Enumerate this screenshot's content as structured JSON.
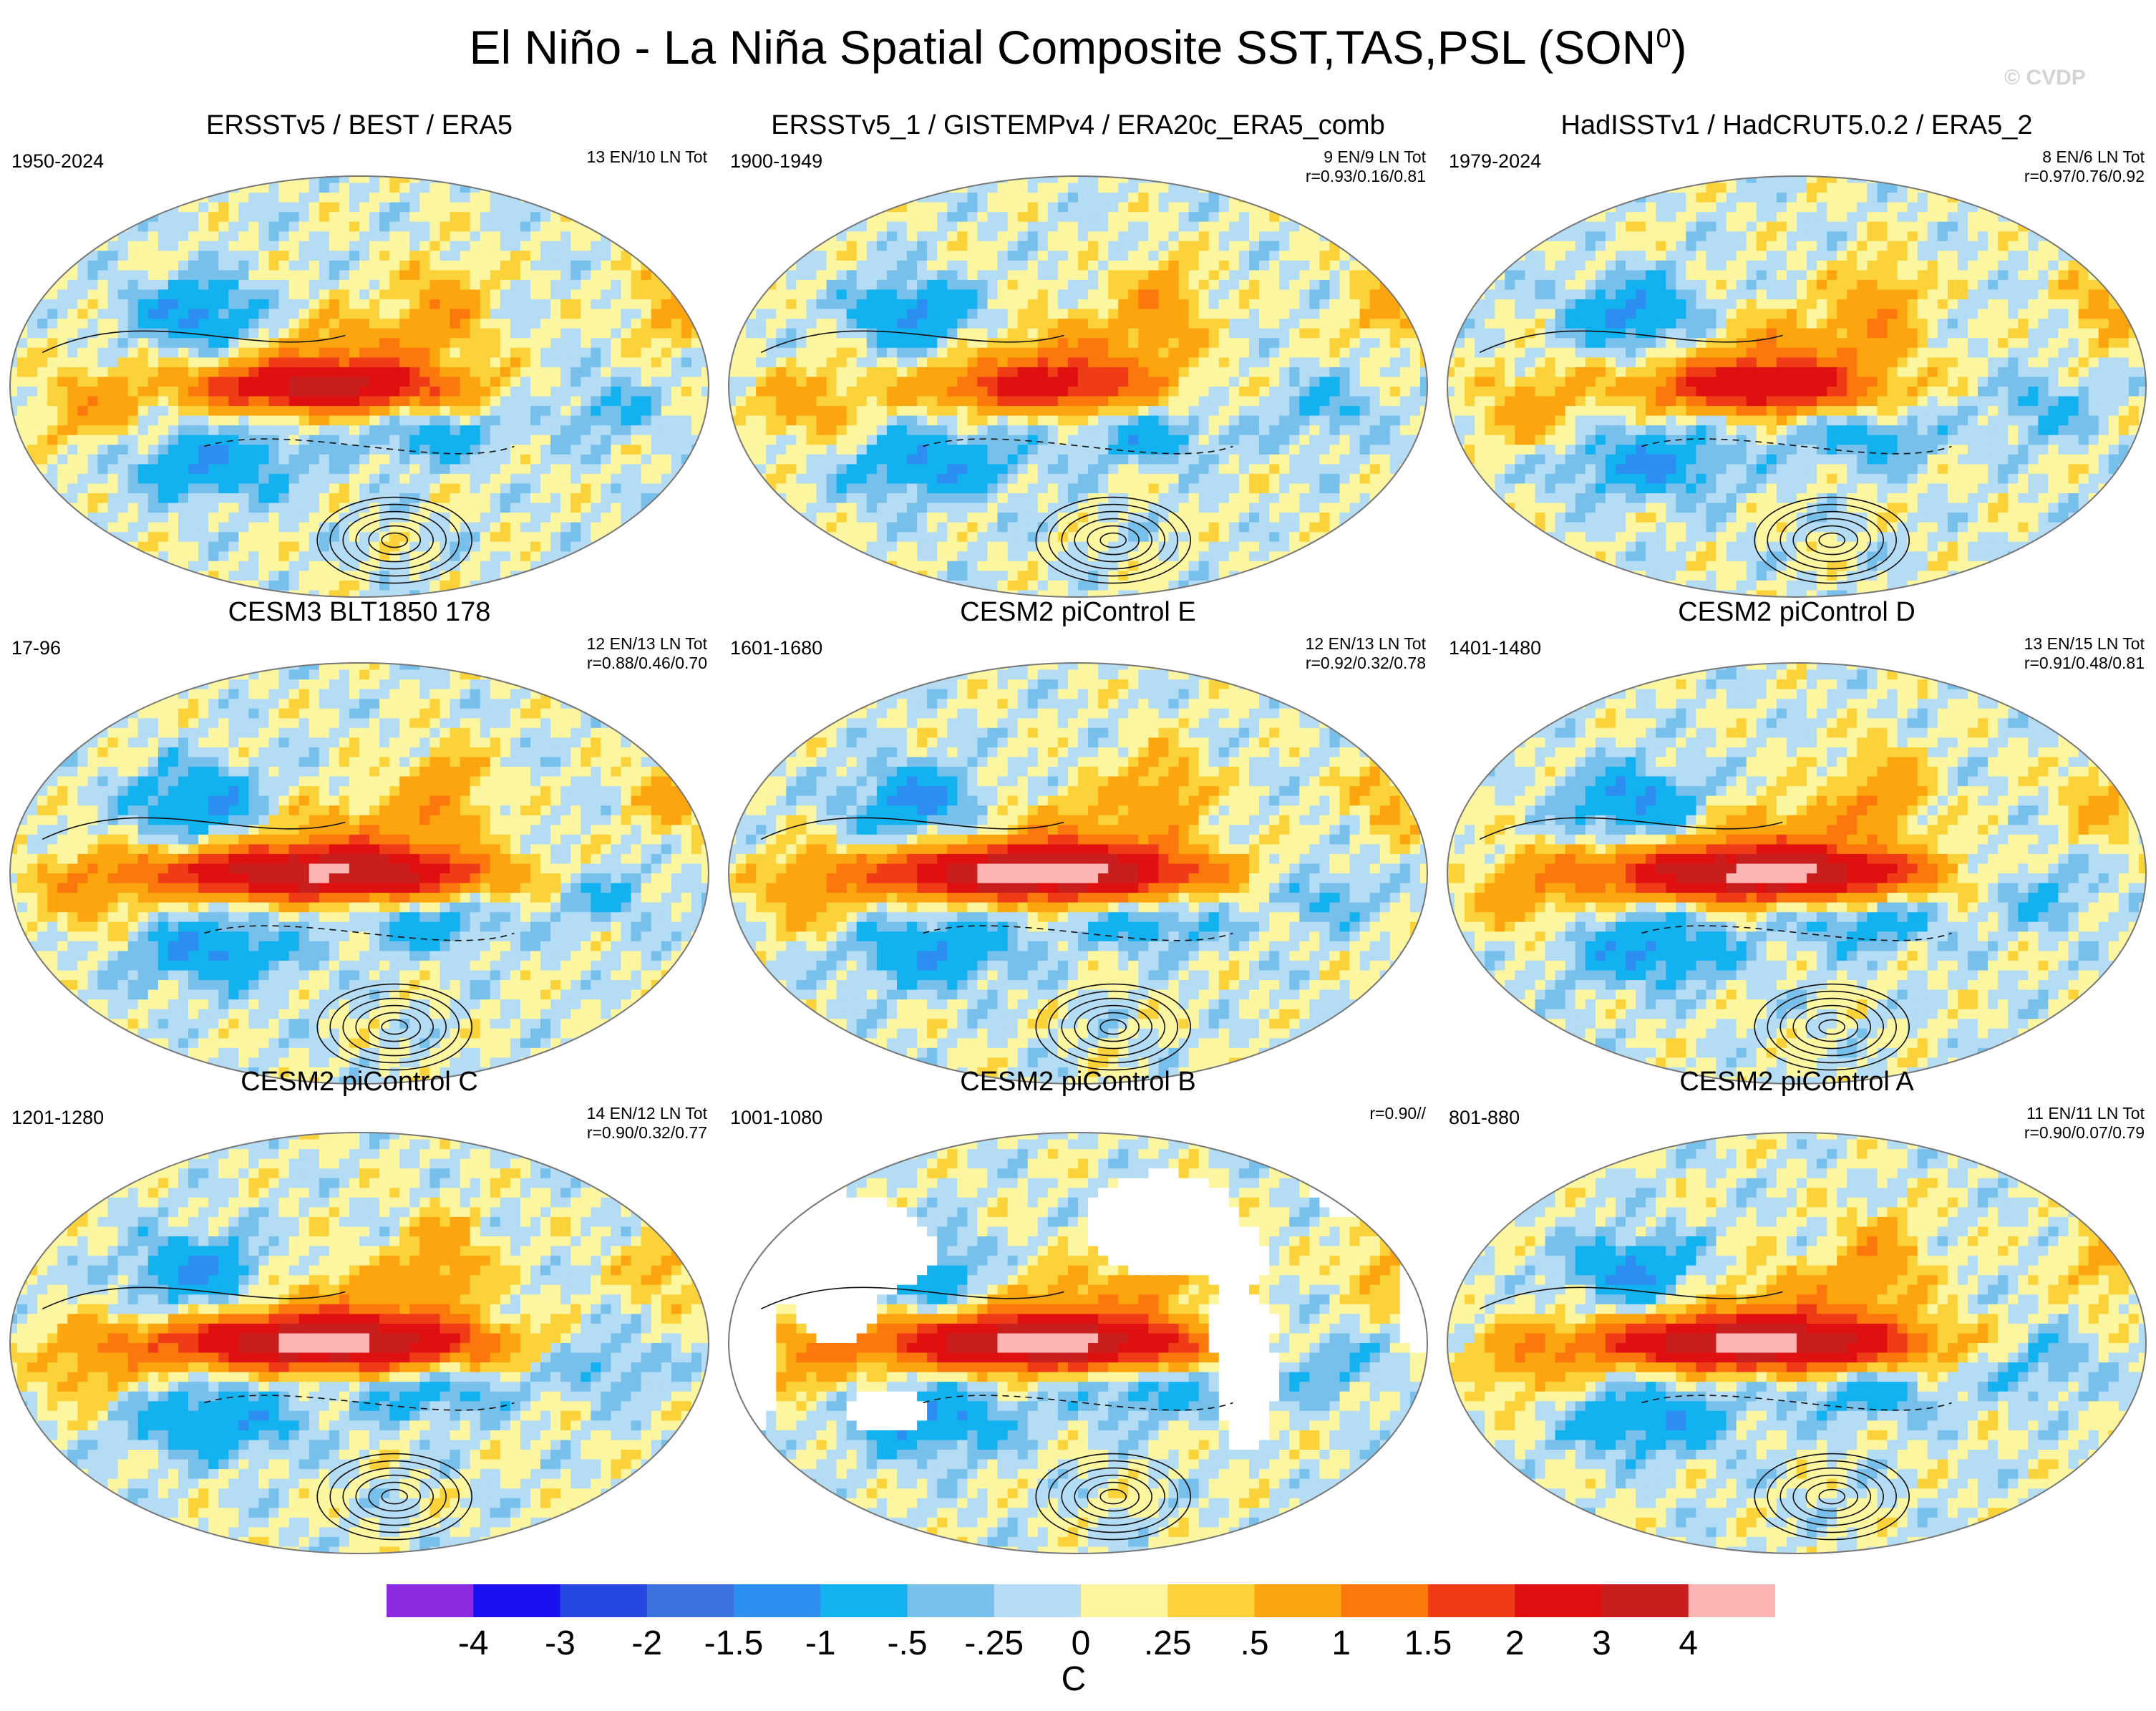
{
  "title_main": "El Niño - La Niña Spatial Composite SST,TAS,PSL (SON",
  "title_sup": "0",
  "title_end": ")",
  "watermark": "© CVDP",
  "chart_data": {
    "type": "heatmap",
    "variable": "SST, TAS (shaded) and PSL (contours)",
    "units": "C",
    "colorbar": {
      "levels": [
        "-4",
        "-3",
        "-2",
        "-1.5",
        "-1",
        "-.5",
        "-.25",
        "0",
        ".25",
        ".5",
        "1",
        "1.5",
        "2",
        "3",
        "4"
      ],
      "colors": [
        "#8a2be2",
        "#1a10f0",
        "#2748e0",
        "#3b72e0",
        "#2b8ef0",
        "#12b2f0",
        "#78c0ec",
        "#b4dcf4",
        "#fcf6a0",
        "#fcd23a",
        "#fca50e",
        "#fc780c",
        "#f03c16",
        "#e01010",
        "#c81e1e",
        "#fcb4b4"
      ]
    },
    "panels": [
      {
        "title": "ERSSTv5 / BEST / ERA5",
        "years": "1950-2024",
        "counts": "13 EN/10 LN Tot",
        "corr": "",
        "land_masked": false,
        "nino_strength": 3.0,
        "nino_width": 1.0,
        "ice": false
      },
      {
        "title": "ERSSTv5_1 / GISTEMPv4 / ERA20c_ERA5_comb",
        "years": "1900-1949",
        "counts": "9 EN/9 LN Tot",
        "corr": "r=0.93/0.16/0.81",
        "land_masked": false,
        "nino_strength": 2.0,
        "nino_width": 0.9,
        "ice": true
      },
      {
        "title": "HadISSTv1 / HadCRUT5.0.2 / ERA5_2",
        "years": "1979-2024",
        "counts": "8 EN/6 LN Tot",
        "corr": "r=0.97/0.76/0.92",
        "land_masked": false,
        "nino_strength": 2.5,
        "nino_width": 0.9,
        "ice": false
      },
      {
        "title": "CESM3 BLT1850 178",
        "years": "17-96",
        "counts": "12 EN/13 LN Tot",
        "corr": "r=0.88/0.46/0.70",
        "land_masked": false,
        "nino_strength": 3.8,
        "nino_width": 1.3,
        "ice": false
      },
      {
        "title": "CESM2 piControl E",
        "years": "1601-1680",
        "counts": "12 EN/13 LN Tot",
        "corr": "r=0.92/0.32/0.78",
        "land_masked": false,
        "nino_strength": 4.5,
        "nino_width": 1.2,
        "ice": false
      },
      {
        "title": "CESM2 piControl D",
        "years": "1401-1480",
        "counts": "13 EN/15 LN Tot",
        "corr": "r=0.91/0.48/0.81",
        "land_masked": false,
        "nino_strength": 4.2,
        "nino_width": 1.2,
        "ice": false
      },
      {
        "title": "CESM2 piControl C",
        "years": "1201-1280",
        "counts": "14 EN/12 LN Tot",
        "corr": "r=0.90/0.32/0.77",
        "land_masked": false,
        "nino_strength": 4.3,
        "nino_width": 1.2,
        "ice": false
      },
      {
        "title": "CESM2 piControl B",
        "years": "1001-1080",
        "counts": "",
        "corr": "r=0.90//",
        "land_masked": true,
        "nino_strength": 4.3,
        "nino_width": 1.2,
        "ice": false
      },
      {
        "title": "CESM2 piControl A",
        "years": "801-880",
        "counts": "11 EN/11 LN Tot",
        "corr": "r=0.90/0.07/0.79",
        "land_masked": false,
        "nino_strength": 4.3,
        "nino_width": 1.2,
        "ice": false
      }
    ]
  }
}
